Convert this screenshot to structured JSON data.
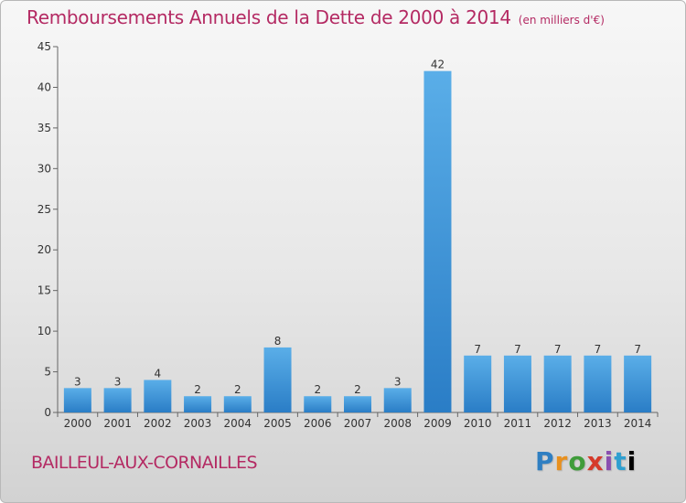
{
  "title": "Remboursements Annuels de la Dette de 2000 à 2014",
  "subtitle": "(en milliers d'€)",
  "commune": "BAILLEUL-AUX-CORNAILLES",
  "logo": {
    "letters": [
      "P",
      "r",
      "o",
      "x",
      "i",
      "t",
      "i"
    ]
  },
  "colors": {
    "bar_light": "#5aaee8",
    "bar_dark": "#2a7dc6",
    "title": "#b42a63"
  },
  "chart_data": {
    "type": "bar",
    "title": "Remboursements Annuels de la Dette de 2000 à 2014",
    "categories": [
      "2000",
      "2001",
      "2002",
      "2003",
      "2004",
      "2005",
      "2006",
      "2007",
      "2008",
      "2009",
      "2010",
      "2011",
      "2012",
      "2013",
      "2014"
    ],
    "values": [
      3,
      3,
      4,
      2,
      2,
      8,
      2,
      2,
      3,
      42,
      7,
      7,
      7,
      7,
      7
    ],
    "ylim": [
      0,
      45
    ],
    "yticks": [
      0,
      5,
      10,
      15,
      20,
      25,
      30,
      35,
      40,
      45
    ],
    "grid": false,
    "legend": "none"
  }
}
